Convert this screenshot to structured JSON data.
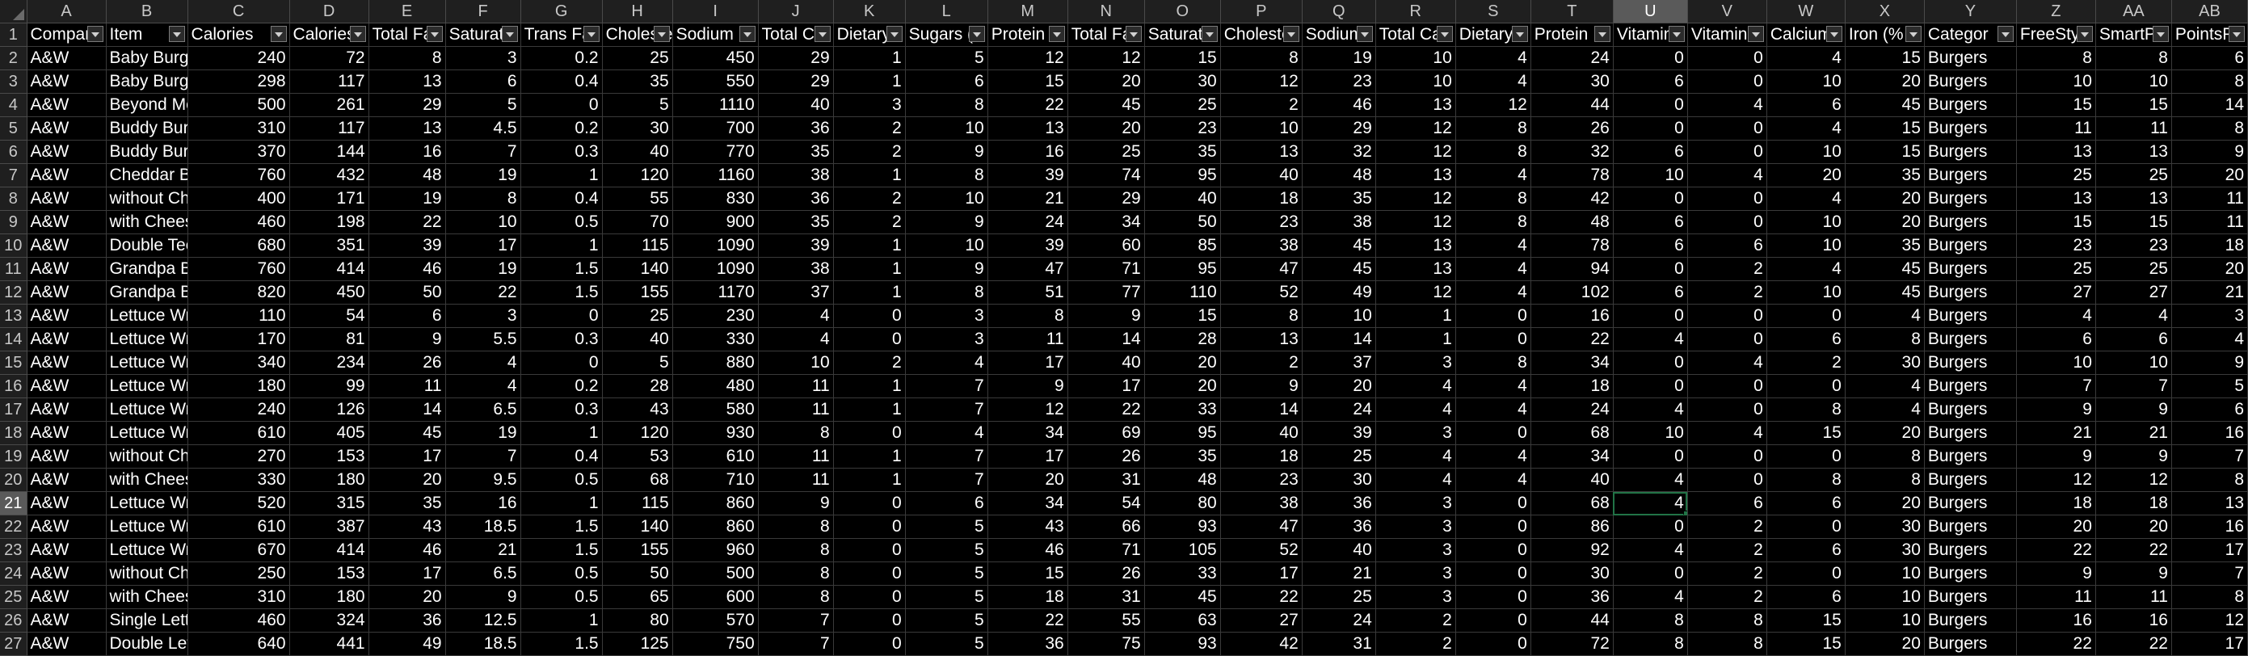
{
  "sheet": {
    "columns": [
      "A",
      "B",
      "C",
      "D",
      "E",
      "F",
      "G",
      "H",
      "I",
      "J",
      "K",
      "L",
      "M",
      "N",
      "O",
      "P",
      "Q",
      "R",
      "S",
      "T",
      "U",
      "V",
      "W",
      "X",
      "Y",
      "Z",
      "AA",
      "AB"
    ],
    "selected_column": "U",
    "selected_row": "21",
    "active_cell": "U21",
    "accent_color": "#217346",
    "header_row": [
      "Compar",
      "Item",
      "Calories",
      "Calories",
      "Total Fa",
      "Saturate",
      "Trans Fa",
      "Choleste",
      "Sodium",
      "Total Ca",
      "Dietary",
      "Sugars (",
      "Protein",
      "Total Fa",
      "Saturate",
      "Choleste",
      "Sodium",
      "Total Ca",
      "Dietary",
      "Protein",
      "Vitamin",
      "Vitamin",
      "Calcium",
      "Iron (%",
      "Categor",
      "FreeStyl",
      "SmartPo",
      "PointsPl"
    ],
    "rows": [
      {
        "num": "2",
        "cells": [
          "A&W",
          "Baby Burge",
          "240",
          "72",
          "8",
          "3",
          "0.2",
          "25",
          "450",
          "29",
          "1",
          "5",
          "12",
          "12",
          "15",
          "8",
          "19",
          "10",
          "4",
          "24",
          "0",
          "0",
          "4",
          "15",
          "Burgers",
          "8",
          "8",
          "6"
        ]
      },
      {
        "num": "3",
        "cells": [
          "A&W",
          "Baby Burge",
          "298",
          "117",
          "13",
          "6",
          "0.4",
          "35",
          "550",
          "29",
          "1",
          "6",
          "15",
          "20",
          "30",
          "12",
          "23",
          "10",
          "4",
          "30",
          "6",
          "0",
          "10",
          "20",
          "Burgers",
          "10",
          "10",
          "8"
        ]
      },
      {
        "num": "4",
        "cells": [
          "A&W",
          "Beyond Me",
          "500",
          "261",
          "29",
          "5",
          "0",
          "5",
          "1110",
          "40",
          "3",
          "8",
          "22",
          "45",
          "25",
          "2",
          "46",
          "13",
          "12",
          "44",
          "0",
          "4",
          "6",
          "45",
          "Burgers",
          "15",
          "15",
          "14"
        ]
      },
      {
        "num": "5",
        "cells": [
          "A&W",
          "Buddy Burg",
          "310",
          "117",
          "13",
          "4.5",
          "0.2",
          "30",
          "700",
          "36",
          "2",
          "10",
          "13",
          "20",
          "23",
          "10",
          "29",
          "12",
          "8",
          "26",
          "0",
          "0",
          "4",
          "15",
          "Burgers",
          "11",
          "11",
          "8"
        ]
      },
      {
        "num": "6",
        "cells": [
          "A&W",
          "Buddy Burg",
          "370",
          "144",
          "16",
          "7",
          "0.3",
          "40",
          "770",
          "35",
          "2",
          "9",
          "16",
          "25",
          "35",
          "13",
          "32",
          "12",
          "8",
          "32",
          "6",
          "0",
          "10",
          "15",
          "Burgers",
          "13",
          "13",
          "9"
        ]
      },
      {
        "num": "7",
        "cells": [
          "A&W",
          "Cheddar Ba",
          "760",
          "432",
          "48",
          "19",
          "1",
          "120",
          "1160",
          "38",
          "1",
          "8",
          "39",
          "74",
          "95",
          "40",
          "48",
          "13",
          "4",
          "78",
          "10",
          "4",
          "20",
          "35",
          "Burgers",
          "25",
          "25",
          "20"
        ]
      },
      {
        "num": "8",
        "cells": [
          "A&W",
          "without Ch",
          "400",
          "171",
          "19",
          "8",
          "0.4",
          "55",
          "830",
          "36",
          "2",
          "10",
          "21",
          "29",
          "40",
          "18",
          "35",
          "12",
          "8",
          "42",
          "0",
          "0",
          "4",
          "20",
          "Burgers",
          "13",
          "13",
          "11"
        ]
      },
      {
        "num": "9",
        "cells": [
          "A&W",
          "with Chees",
          "460",
          "198",
          "22",
          "10",
          "0.5",
          "70",
          "900",
          "35",
          "2",
          "9",
          "24",
          "34",
          "50",
          "23",
          "38",
          "12",
          "8",
          "48",
          "6",
          "0",
          "10",
          "20",
          "Burgers",
          "15",
          "15",
          "11"
        ]
      },
      {
        "num": "10",
        "cells": [
          "A&W",
          "Double Tee",
          "680",
          "351",
          "39",
          "17",
          "1",
          "115",
          "1090",
          "39",
          "1",
          "10",
          "39",
          "60",
          "85",
          "38",
          "45",
          "13",
          "4",
          "78",
          "6",
          "6",
          "10",
          "35",
          "Burgers",
          "23",
          "23",
          "18"
        ]
      },
      {
        "num": "11",
        "cells": [
          "A&W",
          "Grandpa Bu",
          "760",
          "414",
          "46",
          "19",
          "1.5",
          "140",
          "1090",
          "38",
          "1",
          "9",
          "47",
          "71",
          "95",
          "47",
          "45",
          "13",
          "4",
          "94",
          "0",
          "2",
          "4",
          "45",
          "Burgers",
          "25",
          "25",
          "20"
        ]
      },
      {
        "num": "12",
        "cells": [
          "A&W",
          "Grandpa Bu",
          "820",
          "450",
          "50",
          "22",
          "1.5",
          "155",
          "1170",
          "37",
          "1",
          "8",
          "51",
          "77",
          "110",
          "52",
          "49",
          "12",
          "4",
          "102",
          "6",
          "2",
          "10",
          "45",
          "Burgers",
          "27",
          "27",
          "21"
        ]
      },
      {
        "num": "13",
        "cells": [
          "A&W",
          "Lettuce Wr",
          "110",
          "54",
          "6",
          "3",
          "0",
          "25",
          "230",
          "4",
          "0",
          "3",
          "8",
          "9",
          "15",
          "8",
          "10",
          "1",
          "0",
          "16",
          "0",
          "0",
          "0",
          "4",
          "Burgers",
          "4",
          "4",
          "3"
        ]
      },
      {
        "num": "14",
        "cells": [
          "A&W",
          "Lettuce Wr",
          "170",
          "81",
          "9",
          "5.5",
          "0.3",
          "40",
          "330",
          "4",
          "0",
          "3",
          "11",
          "14",
          "28",
          "13",
          "14",
          "1",
          "0",
          "22",
          "4",
          "0",
          "6",
          "8",
          "Burgers",
          "6",
          "6",
          "4"
        ]
      },
      {
        "num": "15",
        "cells": [
          "A&W",
          "Lettuce Wr",
          "340",
          "234",
          "26",
          "4",
          "0",
          "5",
          "880",
          "10",
          "2",
          "4",
          "17",
          "40",
          "20",
          "2",
          "37",
          "3",
          "8",
          "34",
          "0",
          "4",
          "2",
          "30",
          "Burgers",
          "10",
          "10",
          "9"
        ]
      },
      {
        "num": "16",
        "cells": [
          "A&W",
          "Lettuce Wr",
          "180",
          "99",
          "11",
          "4",
          "0.2",
          "28",
          "480",
          "11",
          "1",
          "7",
          "9",
          "17",
          "20",
          "9",
          "20",
          "4",
          "4",
          "18",
          "0",
          "0",
          "0",
          "4",
          "Burgers",
          "7",
          "7",
          "5"
        ]
      },
      {
        "num": "17",
        "cells": [
          "A&W",
          "Lettuce Wr",
          "240",
          "126",
          "14",
          "6.5",
          "0.3",
          "43",
          "580",
          "11",
          "1",
          "7",
          "12",
          "22",
          "33",
          "14",
          "24",
          "4",
          "4",
          "24",
          "4",
          "0",
          "8",
          "4",
          "Burgers",
          "9",
          "9",
          "6"
        ]
      },
      {
        "num": "18",
        "cells": [
          "A&W",
          "Lettuce Wr",
          "610",
          "405",
          "45",
          "19",
          "1",
          "120",
          "930",
          "8",
          "0",
          "4",
          "34",
          "69",
          "95",
          "40",
          "39",
          "3",
          "0",
          "68",
          "10",
          "4",
          "15",
          "20",
          "Burgers",
          "21",
          "21",
          "16"
        ]
      },
      {
        "num": "19",
        "cells": [
          "A&W",
          "without Ch",
          "270",
          "153",
          "17",
          "7",
          "0.4",
          "53",
          "610",
          "11",
          "1",
          "7",
          "17",
          "26",
          "35",
          "18",
          "25",
          "4",
          "4",
          "34",
          "0",
          "0",
          "0",
          "8",
          "Burgers",
          "9",
          "9",
          "7"
        ]
      },
      {
        "num": "20",
        "cells": [
          "A&W",
          "with Chees",
          "330",
          "180",
          "20",
          "9.5",
          "0.5",
          "68",
          "710",
          "11",
          "1",
          "7",
          "20",
          "31",
          "48",
          "23",
          "30",
          "4",
          "4",
          "40",
          "4",
          "0",
          "8",
          "8",
          "Burgers",
          "12",
          "12",
          "8"
        ]
      },
      {
        "num": "21",
        "cells": [
          "A&W",
          "Lettuce Wr",
          "520",
          "315",
          "35",
          "16",
          "1",
          "115",
          "860",
          "9",
          "0",
          "6",
          "34",
          "54",
          "80",
          "38",
          "36",
          "3",
          "0",
          "68",
          "4",
          "6",
          "6",
          "20",
          "Burgers",
          "18",
          "18",
          "13"
        ]
      },
      {
        "num": "22",
        "cells": [
          "A&W",
          "Lettuce Wr",
          "610",
          "387",
          "43",
          "18.5",
          "1.5",
          "140",
          "860",
          "8",
          "0",
          "5",
          "43",
          "66",
          "93",
          "47",
          "36",
          "3",
          "0",
          "86",
          "0",
          "2",
          "0",
          "30",
          "Burgers",
          "20",
          "20",
          "16"
        ]
      },
      {
        "num": "23",
        "cells": [
          "A&W",
          "Lettuce Wr",
          "670",
          "414",
          "46",
          "21",
          "1.5",
          "155",
          "960",
          "8",
          "0",
          "5",
          "46",
          "71",
          "105",
          "52",
          "40",
          "3",
          "0",
          "92",
          "4",
          "2",
          "6",
          "30",
          "Burgers",
          "22",
          "22",
          "17"
        ]
      },
      {
        "num": "24",
        "cells": [
          "A&W",
          "without Ch",
          "250",
          "153",
          "17",
          "6.5",
          "0.5",
          "50",
          "500",
          "8",
          "0",
          "5",
          "15",
          "26",
          "33",
          "17",
          "21",
          "3",
          "0",
          "30",
          "0",
          "2",
          "0",
          "10",
          "Burgers",
          "9",
          "9",
          "7"
        ]
      },
      {
        "num": "25",
        "cells": [
          "A&W",
          "with Chees",
          "310",
          "180",
          "20",
          "9",
          "0.5",
          "65",
          "600",
          "8",
          "0",
          "5",
          "18",
          "31",
          "45",
          "22",
          "25",
          "3",
          "0",
          "36",
          "4",
          "2",
          "6",
          "10",
          "Burgers",
          "11",
          "11",
          "8"
        ]
      },
      {
        "num": "26",
        "cells": [
          "A&W",
          "Single Lettu",
          "460",
          "324",
          "36",
          "12.5",
          "1",
          "80",
          "570",
          "7",
          "0",
          "5",
          "22",
          "55",
          "63",
          "27",
          "24",
          "2",
          "0",
          "44",
          "8",
          "8",
          "15",
          "10",
          "Burgers",
          "16",
          "16",
          "12"
        ]
      },
      {
        "num": "27",
        "cells": [
          "A&W",
          "Double Let",
          "640",
          "441",
          "49",
          "18.5",
          "1.5",
          "125",
          "750",
          "7",
          "0",
          "5",
          "36",
          "75",
          "93",
          "42",
          "31",
          "2",
          "0",
          "72",
          "8",
          "8",
          "15",
          "20",
          "Burgers",
          "22",
          "22",
          "17"
        ]
      }
    ]
  }
}
